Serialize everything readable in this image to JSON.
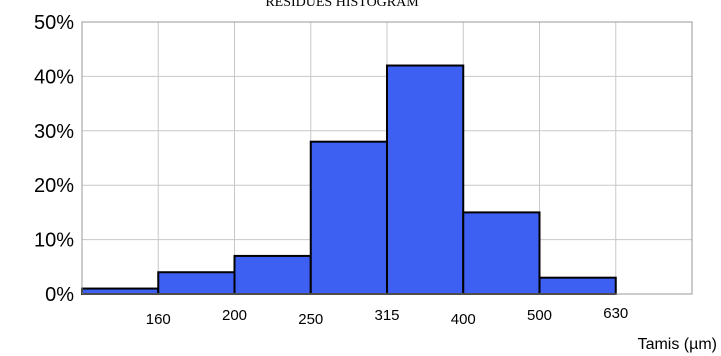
{
  "chart_data": {
    "type": "bar",
    "title": "RESIDUES HISTOGRAM",
    "xlabel": "Tamis (µm)",
    "ylabel": "",
    "ylim": [
      0,
      50
    ],
    "y_ticks": [
      "0%",
      "10%",
      "20%",
      "30%",
      "40%",
      "50%"
    ],
    "y_tick_values": [
      0,
      10,
      20,
      30,
      40,
      50
    ],
    "x_ticks": [
      "160",
      "200",
      "250",
      "315",
      "400",
      "500",
      "630"
    ],
    "bins": [
      {
        "lower": "",
        "upper": "160",
        "value": 1
      },
      {
        "lower": "160",
        "upper": "200",
        "value": 4
      },
      {
        "lower": "200",
        "upper": "250",
        "value": 7
      },
      {
        "lower": "250",
        "upper": "315",
        "value": 28
      },
      {
        "lower": "315",
        "upper": "400",
        "value": 42
      },
      {
        "lower": "400",
        "upper": "500",
        "value": 15
      },
      {
        "lower": "500",
        "upper": "630",
        "value": 3
      },
      {
        "lower": "630",
        "upper": "",
        "value": 0
      }
    ],
    "values": [
      1,
      4,
      7,
      28,
      42,
      15,
      3,
      0
    ],
    "grid": true,
    "colors": {
      "bar": "#3d5ff2",
      "bar_edge": "#000000",
      "grid": "#c8c8c8"
    }
  }
}
